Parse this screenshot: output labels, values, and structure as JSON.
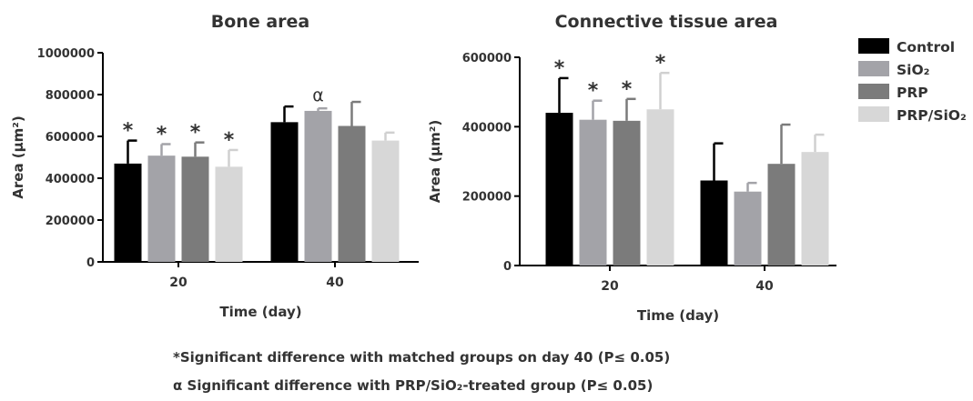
{
  "chart_data": [
    {
      "type": "bar",
      "title": "Bone area",
      "xlabel": "Time (day)",
      "ylabel": "Area (μm²)",
      "categories": [
        "20",
        "40"
      ],
      "ylim": [
        0,
        1000000
      ],
      "yticks": [
        "0",
        "200000",
        "400000",
        "600000",
        "800000",
        "1000000"
      ],
      "series": [
        {
          "name": "Control",
          "values": [
            470000,
            668000
          ],
          "errors": [
            110000,
            75000
          ],
          "marks": [
            "*",
            ""
          ]
        },
        {
          "name": "SiO2",
          "values": [
            508000,
            722000
          ],
          "errors": [
            55000,
            12000
          ],
          "marks": [
            "*",
            "α"
          ]
        },
        {
          "name": "PRP",
          "values": [
            503000,
            650000
          ],
          "errors": [
            68000,
            115000
          ],
          "marks": [
            "*",
            ""
          ]
        },
        {
          "name": "PRP/SiO2",
          "values": [
            455000,
            580000
          ],
          "errors": [
            80000,
            38000
          ],
          "marks": [
            "*",
            ""
          ]
        }
      ]
    },
    {
      "type": "bar",
      "title": "Connective tissue area",
      "xlabel": "Time (day)",
      "ylabel": "Area (μm²)",
      "categories": [
        "20",
        "40"
      ],
      "ylim": [
        0,
        600000
      ],
      "yticks": [
        "0",
        "200000",
        "400000",
        "600000"
      ],
      "series": [
        {
          "name": "Control",
          "values": [
            440000,
            245000
          ],
          "errors": [
            100000,
            107000
          ],
          "marks": [
            "*",
            ""
          ]
        },
        {
          "name": "SiO2",
          "values": [
            420000,
            213000
          ],
          "errors": [
            55000,
            25000
          ],
          "marks": [
            "*",
            ""
          ]
        },
        {
          "name": "PRP",
          "values": [
            417000,
            293000
          ],
          "errors": [
            63000,
            113000
          ],
          "marks": [
            "*",
            ""
          ]
        },
        {
          "name": "PRP/SiO2",
          "values": [
            450000,
            327000
          ],
          "errors": [
            105000,
            50000
          ],
          "marks": [
            "*",
            ""
          ]
        }
      ]
    }
  ],
  "legend": [
    {
      "label": "Control",
      "color": "#000000"
    },
    {
      "label": "SiO₂",
      "color": "#a3a3a8"
    },
    {
      "label": "PRP",
      "color": "#7b7b7b"
    },
    {
      "label": "PRP/SiO₂",
      "color": "#d7d7d7"
    }
  ],
  "footnotes": {
    "significance_star": "*Significant difference with matched groups on day 40 (P≤ 0.05)",
    "significance_alpha": "α Significant difference with PRP/SiO₂-treated group (P≤ 0.05)"
  }
}
